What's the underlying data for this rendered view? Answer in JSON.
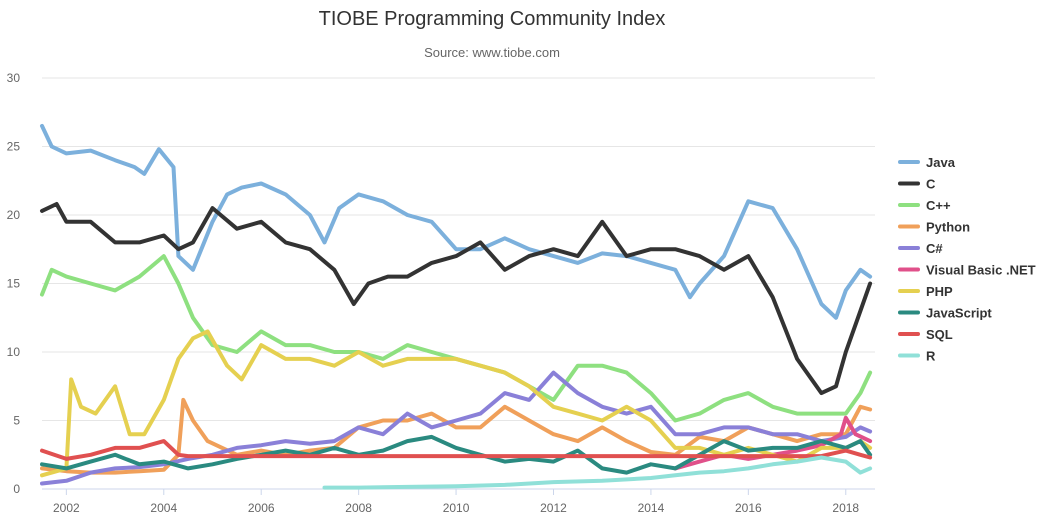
{
  "chart_data": {
    "type": "line",
    "title": "TIOBE Programming Community Index",
    "subtitle": "Source: www.tiobe.com",
    "xlabel": "",
    "ylabel": "",
    "xlim": [
      2001.5,
      2018.6
    ],
    "ylim": [
      0,
      30
    ],
    "x_ticks": [
      "2002",
      "2004",
      "2006",
      "2008",
      "2010",
      "2012",
      "2014",
      "2016",
      "2018"
    ],
    "y_ticks": [
      "0",
      "5",
      "10",
      "15",
      "20",
      "25",
      "30"
    ],
    "grid": "horizontal",
    "legend_position": "right",
    "series": [
      {
        "name": "Java",
        "color": "#7cb0dc",
        "x": [
          2001.5,
          2001.7,
          2002,
          2002.5,
          2003,
          2003.4,
          2003.6,
          2003.9,
          2004.2,
          2004.3,
          2004.6,
          2005,
          2005.3,
          2005.6,
          2006,
          2006.5,
          2007,
          2007.3,
          2007.6,
          2008,
          2008.5,
          2009,
          2009.5,
          2010,
          2010.5,
          2011,
          2011.5,
          2012,
          2012.5,
          2013,
          2013.5,
          2014,
          2014.5,
          2014.8,
          2015,
          2015.5,
          2016,
          2016.5,
          2017,
          2017.5,
          2017.8,
          2018,
          2018.3,
          2018.5
        ],
        "y": [
          26.5,
          25,
          24.5,
          24.7,
          24,
          23.5,
          23,
          24.8,
          23.5,
          17,
          16,
          19.5,
          21.5,
          22,
          22.3,
          21.5,
          20,
          18,
          20.5,
          21.5,
          21,
          20,
          19.5,
          17.5,
          17.5,
          18.3,
          17.5,
          17,
          16.5,
          17.2,
          17,
          16.5,
          16,
          14,
          15,
          17,
          21,
          20.5,
          17.5,
          13.5,
          12.5,
          14.5,
          16,
          15.5
        ]
      },
      {
        "name": "C",
        "color": "#333333",
        "x": [
          2001.5,
          2001.8,
          2002,
          2002.5,
          2003,
          2003.5,
          2004,
          2004.3,
          2004.6,
          2005,
          2005.5,
          2006,
          2006.5,
          2007,
          2007.5,
          2007.9,
          2008.2,
          2008.6,
          2009,
          2009.5,
          2010,
          2010.5,
          2011,
          2011.5,
          2012,
          2012.5,
          2013,
          2013.5,
          2014,
          2014.5,
          2015,
          2015.5,
          2016,
          2016.5,
          2017,
          2017.5,
          2017.8,
          2018,
          2018.3,
          2018.5
        ],
        "y": [
          20.3,
          20.8,
          19.5,
          19.5,
          18,
          18,
          18.5,
          17.5,
          18,
          20.5,
          19,
          19.5,
          18,
          17.5,
          16,
          13.5,
          15,
          15.5,
          15.5,
          16.5,
          17,
          18,
          16,
          17,
          17.5,
          17,
          19.5,
          17,
          17.5,
          17.5,
          17,
          16,
          17,
          14,
          9.5,
          7,
          7.5,
          10,
          13,
          15
        ]
      },
      {
        "name": "C++",
        "color": "#8ee080",
        "x": [
          2001.5,
          2001.7,
          2002,
          2002.5,
          2003,
          2003.5,
          2004,
          2004.3,
          2004.6,
          2005,
          2005.5,
          2006,
          2006.5,
          2007,
          2007.5,
          2008,
          2008.5,
          2009,
          2009.5,
          2010,
          2010.5,
          2011,
          2011.5,
          2012,
          2012.5,
          2013,
          2013.5,
          2014,
          2014.5,
          2015,
          2015.5,
          2016,
          2016.5,
          2017,
          2017.5,
          2018,
          2018.3,
          2018.5
        ],
        "y": [
          14.2,
          16,
          15.5,
          15,
          14.5,
          15.5,
          17,
          15,
          12.5,
          10.5,
          10,
          11.5,
          10.5,
          10.5,
          10,
          10,
          9.5,
          10.5,
          10,
          9.5,
          9,
          8.5,
          7.5,
          6.5,
          9,
          9,
          8.5,
          7,
          5,
          5.5,
          6.5,
          7,
          6,
          5.5,
          5.5,
          5.5,
          7,
          8.5
        ]
      },
      {
        "name": "Python",
        "color": "#f0a05a",
        "x": [
          2001.5,
          2002,
          2002.5,
          2003,
          2003.5,
          2004,
          2004.3,
          2004.4,
          2004.6,
          2004.9,
          2005.5,
          2006,
          2006.5,
          2007,
          2007.5,
          2008,
          2008.5,
          2009,
          2009.5,
          2010,
          2010.5,
          2011,
          2011.5,
          2012,
          2012.5,
          2013,
          2013.5,
          2014,
          2014.5,
          2015,
          2015.5,
          2016,
          2016.5,
          2017,
          2017.5,
          2018,
          2018.3,
          2018.5
        ],
        "y": [
          1.5,
          1.3,
          1.2,
          1.2,
          1.3,
          1.4,
          2.5,
          6.5,
          5,
          3.5,
          2.5,
          2.8,
          2.5,
          2.8,
          3,
          4.5,
          5,
          5,
          5.5,
          4.5,
          4.5,
          6,
          5,
          4,
          3.5,
          4.5,
          3.5,
          2.7,
          2.5,
          3.8,
          3.5,
          4.5,
          4,
          3.5,
          4,
          4,
          6,
          5.8
        ]
      },
      {
        "name": "C#",
        "color": "#8a80d8",
        "x": [
          2001.5,
          2002,
          2002.5,
          2003,
          2003.5,
          2004,
          2004.5,
          2005,
          2005.5,
          2006,
          2006.5,
          2007,
          2007.5,
          2008,
          2008.5,
          2009,
          2009.5,
          2010,
          2010.5,
          2011,
          2011.5,
          2012,
          2012.5,
          2013,
          2013.5,
          2014,
          2014.5,
          2015,
          2015.5,
          2016,
          2016.5,
          2017,
          2017.5,
          2018,
          2018.3,
          2018.5
        ],
        "y": [
          0.4,
          0.6,
          1.2,
          1.5,
          1.6,
          1.8,
          2.2,
          2.5,
          3,
          3.2,
          3.5,
          3.3,
          3.5,
          4.5,
          4,
          5.5,
          4.5,
          5,
          5.5,
          7,
          6.5,
          8.5,
          7,
          6,
          5.5,
          6,
          4,
          4,
          4.5,
          4.5,
          4,
          4,
          3.5,
          3.8,
          4.5,
          4.2
        ]
      },
      {
        "name": "Visual Basic .NET",
        "color": "#e0508a",
        "x": [
          2014.5,
          2015,
          2015.5,
          2016,
          2016.5,
          2017,
          2017.5,
          2017.9,
          2018,
          2018.2,
          2018.5
        ],
        "y": [
          1.5,
          2,
          2.5,
          2.2,
          2.5,
          2.8,
          3.2,
          4,
          5.2,
          4,
          3.5
        ]
      },
      {
        "name": "PHP",
        "color": "#e5d050",
        "x": [
          2001.5,
          2002,
          2002.1,
          2002.3,
          2002.6,
          2003,
          2003.3,
          2003.6,
          2004,
          2004.3,
          2004.6,
          2004.9,
          2005.3,
          2005.6,
          2006,
          2006.5,
          2007,
          2007.5,
          2008,
          2008.5,
          2009,
          2009.5,
          2010,
          2010.5,
          2011,
          2011.5,
          2012,
          2012.5,
          2013,
          2013.5,
          2014,
          2014.5,
          2015,
          2015.5,
          2016,
          2016.5,
          2017,
          2017.5,
          2018,
          2018.3,
          2018.5
        ],
        "y": [
          1,
          1.5,
          8,
          6,
          5.5,
          7.5,
          4,
          4,
          6.5,
          9.5,
          11,
          11.5,
          9,
          8,
          10.5,
          9.5,
          9.5,
          9,
          10,
          9,
          9.5,
          9.5,
          9.5,
          9,
          8.5,
          7.5,
          6,
          5.5,
          5,
          6,
          5,
          3,
          3,
          2.5,
          3,
          2.5,
          2,
          3,
          3,
          3.5,
          3
        ]
      },
      {
        "name": "JavaScript",
        "color": "#2a8a80",
        "x": [
          2001.5,
          2002,
          2002.5,
          2003,
          2003.5,
          2004,
          2004.5,
          2005,
          2005.5,
          2006,
          2006.5,
          2007,
          2007.5,
          2008,
          2008.5,
          2009,
          2009.5,
          2010,
          2010.5,
          2011,
          2011.5,
          2012,
          2012.5,
          2013,
          2013.5,
          2014,
          2014.5,
          2015,
          2015.5,
          2016,
          2016.5,
          2017,
          2017.5,
          2018,
          2018.3,
          2018.5
        ],
        "y": [
          1.8,
          1.5,
          2,
          2.5,
          1.8,
          2,
          1.5,
          1.8,
          2.2,
          2.5,
          2.8,
          2.5,
          3,
          2.5,
          2.8,
          3.5,
          3.8,
          3,
          2.5,
          2,
          2.2,
          2,
          2.8,
          1.5,
          1.2,
          1.8,
          1.5,
          2.5,
          3.5,
          2.8,
          3,
          3,
          3.5,
          3,
          3.5,
          2.5
        ]
      },
      {
        "name": "SQL",
        "color": "#e05050",
        "x": [
          2001.5,
          2002,
          2002.5,
          2003,
          2003.5,
          2004,
          2004.3,
          2004.5,
          2014,
          2017.5,
          2018,
          2018.3,
          2018.5
        ],
        "y": [
          2.8,
          2.2,
          2.5,
          3,
          3,
          3.5,
          2.5,
          2.4,
          2.4,
          2.4,
          2.8,
          2.5,
          2.3
        ]
      },
      {
        "name": "R",
        "color": "#90e0d8",
        "x": [
          2007.3,
          2008,
          2009,
          2010,
          2011,
          2012,
          2013,
          2014,
          2014.5,
          2015,
          2015.5,
          2016,
          2016.5,
          2017,
          2017.5,
          2018,
          2018.3,
          2018.5
        ],
        "y": [
          0.1,
          0.1,
          0.15,
          0.2,
          0.3,
          0.5,
          0.6,
          0.8,
          1,
          1.2,
          1.3,
          1.5,
          1.8,
          2,
          2.3,
          2,
          1.2,
          1.5
        ]
      }
    ]
  }
}
